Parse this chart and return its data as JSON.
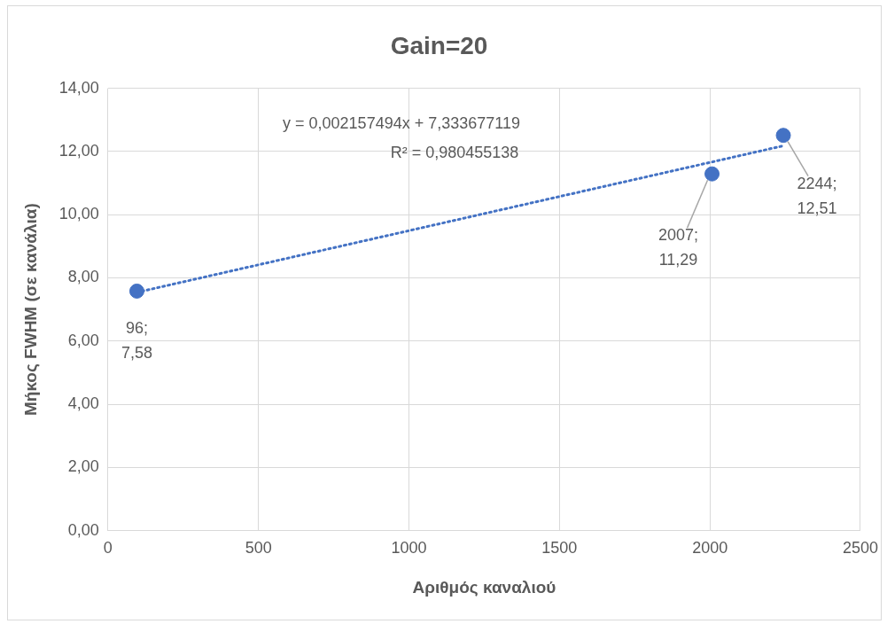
{
  "chart_data": {
    "type": "scatter",
    "title": "Gain=20",
    "xlabel": "Αριθμός καναλιού",
    "ylabel": "Μήκος FWHM (σε κανάλια)",
    "xlim": [
      0,
      2500
    ],
    "xticks": [
      0,
      500,
      1000,
      1500,
      2000,
      2500
    ],
    "ylim": [
      0,
      14
    ],
    "yticks": [
      {
        "value": 0,
        "label": "0,00"
      },
      {
        "value": 2,
        "label": "2,00"
      },
      {
        "value": 4,
        "label": "4,00"
      },
      {
        "value": 6,
        "label": "6,00"
      },
      {
        "value": 8,
        "label": "8,00"
      },
      {
        "value": 10,
        "label": "10,00"
      },
      {
        "value": 12,
        "label": "12,00"
      },
      {
        "value": 14,
        "label": "14,00"
      }
    ],
    "grid": true,
    "series": [
      {
        "type": "scatter",
        "marker": "circle",
        "color": "#4472c4",
        "x": [
          96,
          2007,
          2244
        ],
        "values": [
          7.58,
          11.29,
          12.51
        ],
        "value_labels": [
          "96;\n7,58",
          "2007;\n11,29",
          "2244;\n12,51"
        ]
      },
      {
        "type": "line",
        "marker": "none",
        "color": "#4472c4",
        "line_style": "dotted",
        "x": [
          96,
          2244
        ],
        "values": [
          7.54,
          12.18
        ]
      }
    ],
    "annotations": [
      "y = 0,002157494x + 7,333677119",
      "R² = 0,980455138"
    ]
  }
}
